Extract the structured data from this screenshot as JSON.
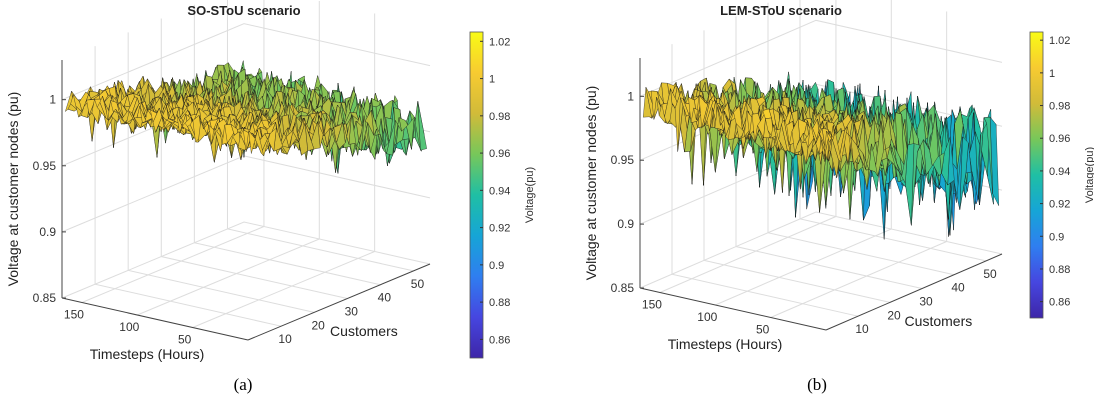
{
  "chart_data": [
    {
      "type": "surface",
      "panel_label": "(a)",
      "title": "SO-SToU scenario",
      "xlabel": "Timesteps (Hours)",
      "ylabel": "Customers",
      "zlabel": "Voltage at customer nodes (pu)",
      "xlim": [
        0,
        168
      ],
      "ylim": [
        0,
        55
      ],
      "zlim": [
        0.85,
        1.03
      ],
      "x_ticks": [
        50,
        100,
        150
      ],
      "y_ticks": [
        10,
        20,
        30,
        40,
        50
      ],
      "z_ticks": [
        0.85,
        0.9,
        0.95,
        1
      ],
      "z_tick_labels": [
        "0.85",
        "0.9",
        "0.95",
        "1"
      ],
      "grid": true,
      "colormap": "parula",
      "colorbar": {
        "label": "Voltage(pu)",
        "clim": [
          0.85,
          1.025
        ],
        "ticks": [
          0.86,
          0.88,
          0.9,
          0.92,
          0.94,
          0.96,
          0.98,
          1,
          1.02
        ],
        "tick_labels": [
          "0.86",
          "0.88",
          "0.9",
          "0.92",
          "0.94",
          "0.96",
          "0.98",
          "1",
          "1.02"
        ]
      },
      "surface_summary": {
        "max_voltage": 1.005,
        "min_voltage": 0.935,
        "typical_voltage": 0.98
      }
    },
    {
      "type": "surface",
      "panel_label": "(b)",
      "title": "LEM-SToU scenario",
      "xlabel": "Timesteps (Hours)",
      "ylabel": "Customers",
      "zlabel": "Voltage at customer nodes (pu)",
      "xlim": [
        0,
        168
      ],
      "ylim": [
        0,
        55
      ],
      "zlim": [
        0.85,
        1.03
      ],
      "x_ticks": [
        50,
        100,
        150
      ],
      "y_ticks": [
        10,
        20,
        30,
        40,
        50
      ],
      "z_ticks": [
        0.85,
        0.9,
        0.95,
        1
      ],
      "z_tick_labels": [
        "0.85",
        "0.9",
        "0.95",
        "1"
      ],
      "grid": true,
      "colormap": "parula",
      "colorbar": {
        "label": "Voltage(pu)",
        "clim": [
          0.85,
          1.025
        ],
        "ticks": [
          0.86,
          0.88,
          0.9,
          0.92,
          0.94,
          0.96,
          0.98,
          1,
          1.02
        ],
        "tick_labels": [
          "0.86",
          "0.88",
          "0.9",
          "0.92",
          "0.94",
          "0.96",
          "0.98",
          "1",
          "1.02"
        ]
      },
      "surface_summary": {
        "max_voltage": 1.02,
        "min_voltage": 0.88,
        "typical_voltage": 0.96
      }
    }
  ],
  "colors": {
    "parula_stops": [
      "#3e26a8",
      "#4646e0",
      "#2f7ef0",
      "#16a5d6",
      "#1fbfa4",
      "#77c75a",
      "#d1bb39",
      "#f7cb31",
      "#f9fb15"
    ],
    "edge": "#1a1a1a",
    "grid": "#dddddd",
    "axis": "#444444"
  }
}
